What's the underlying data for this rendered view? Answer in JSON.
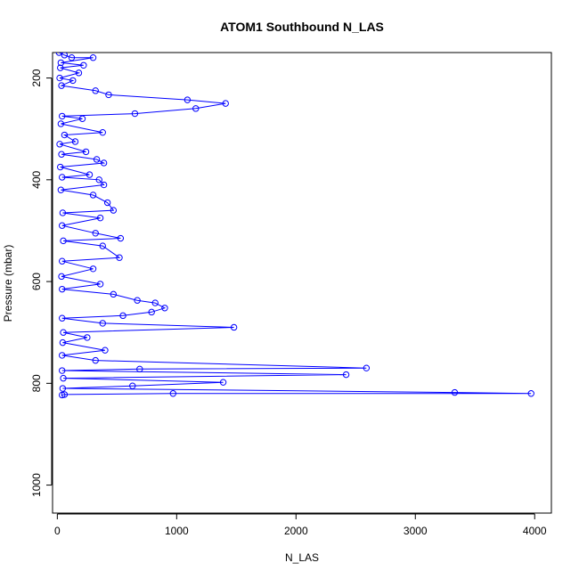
{
  "chart_data": {
    "type": "scatter",
    "title": "ATOM1 Southbound N_LAS",
    "xlabel": "N_LAS",
    "ylabel": "Pressure (mbar)",
    "xlim": [
      -40,
      4140
    ],
    "ylim": [
      1055,
      150
    ],
    "y_reversed": true,
    "x_ticks": [
      0,
      1000,
      2000,
      3000,
      4000
    ],
    "y_ticks": [
      200,
      400,
      600,
      800,
      1000
    ],
    "grid": false,
    "legend": "none",
    "colors": {
      "series": "#0000ff",
      "axis": "#000000"
    },
    "series": [
      {
        "marker": "open-circle",
        "connected": true,
        "points": [
          {
            "x": 15,
            "y": 150
          },
          {
            "x": 60,
            "y": 155
          },
          {
            "x": 120,
            "y": 160
          },
          {
            "x": 300,
            "y": 160
          },
          {
            "x": 30,
            "y": 170
          },
          {
            "x": 220,
            "y": 175
          },
          {
            "x": 25,
            "y": 180
          },
          {
            "x": 180,
            "y": 190
          },
          {
            "x": 20,
            "y": 200
          },
          {
            "x": 130,
            "y": 205
          },
          {
            "x": 35,
            "y": 215
          },
          {
            "x": 320,
            "y": 225
          },
          {
            "x": 430,
            "y": 233
          },
          {
            "x": 1090,
            "y": 243
          },
          {
            "x": 1410,
            "y": 250
          },
          {
            "x": 1160,
            "y": 260
          },
          {
            "x": 650,
            "y": 270
          },
          {
            "x": 40,
            "y": 275
          },
          {
            "x": 210,
            "y": 280
          },
          {
            "x": 30,
            "y": 290
          },
          {
            "x": 380,
            "y": 307
          },
          {
            "x": 60,
            "y": 312
          },
          {
            "x": 150,
            "y": 325
          },
          {
            "x": 20,
            "y": 330
          },
          {
            "x": 240,
            "y": 345
          },
          {
            "x": 35,
            "y": 350
          },
          {
            "x": 330,
            "y": 360
          },
          {
            "x": 390,
            "y": 367
          },
          {
            "x": 25,
            "y": 375
          },
          {
            "x": 270,
            "y": 390
          },
          {
            "x": 40,
            "y": 395
          },
          {
            "x": 350,
            "y": 400
          },
          {
            "x": 390,
            "y": 410
          },
          {
            "x": 30,
            "y": 420
          },
          {
            "x": 300,
            "y": 430
          },
          {
            "x": 420,
            "y": 445
          },
          {
            "x": 470,
            "y": 460
          },
          {
            "x": 45,
            "y": 465
          },
          {
            "x": 360,
            "y": 475
          },
          {
            "x": 40,
            "y": 490
          },
          {
            "x": 320,
            "y": 505
          },
          {
            "x": 530,
            "y": 515
          },
          {
            "x": 50,
            "y": 520
          },
          {
            "x": 380,
            "y": 530
          },
          {
            "x": 520,
            "y": 553
          },
          {
            "x": 40,
            "y": 560
          },
          {
            "x": 300,
            "y": 575
          },
          {
            "x": 35,
            "y": 590
          },
          {
            "x": 360,
            "y": 605
          },
          {
            "x": 40,
            "y": 615
          },
          {
            "x": 470,
            "y": 625
          },
          {
            "x": 670,
            "y": 637
          },
          {
            "x": 820,
            "y": 642
          },
          {
            "x": 900,
            "y": 652
          },
          {
            "x": 790,
            "y": 660
          },
          {
            "x": 550,
            "y": 667
          },
          {
            "x": 40,
            "y": 672
          },
          {
            "x": 380,
            "y": 682
          },
          {
            "x": 1480,
            "y": 690
          },
          {
            "x": 50,
            "y": 700
          },
          {
            "x": 250,
            "y": 710
          },
          {
            "x": 45,
            "y": 720
          },
          {
            "x": 400,
            "y": 735
          },
          {
            "x": 40,
            "y": 745
          },
          {
            "x": 320,
            "y": 755
          },
          {
            "x": 2590,
            "y": 770
          },
          {
            "x": 690,
            "y": 772
          },
          {
            "x": 40,
            "y": 775
          },
          {
            "x": 2420,
            "y": 783
          },
          {
            "x": 50,
            "y": 790
          },
          {
            "x": 1390,
            "y": 798
          },
          {
            "x": 630,
            "y": 805
          },
          {
            "x": 45,
            "y": 810
          },
          {
            "x": 3330,
            "y": 818
          },
          {
            "x": 3970,
            "y": 820
          },
          {
            "x": 970,
            "y": 820
          },
          {
            "x": 60,
            "y": 822
          },
          {
            "x": 40,
            "y": 823
          }
        ]
      }
    ]
  }
}
